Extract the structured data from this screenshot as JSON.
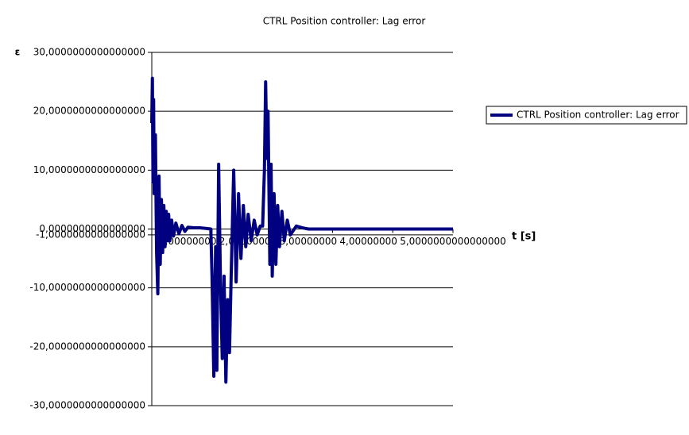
{
  "chart_data": {
    "type": "line",
    "title": "CTRL Position controller: Lag error",
    "y_label": "ε",
    "x_label": "t [s]",
    "xlim": [
      0,
      5
    ],
    "xticks": [
      {
        "value": 1,
        "label": "1,0000000000000000"
      },
      {
        "value": 2,
        "label": "2,0000000000000000"
      },
      {
        "value": 3,
        "label": "3,0000000000000000"
      },
      {
        "value": 4,
        "label": "4,0000000000000000"
      },
      {
        "value": 5,
        "label": "5,0000000000000000"
      }
    ],
    "ylim": [
      -30,
      30
    ],
    "yticks": [
      {
        "value": -30,
        "label": "-30,0000000000000000"
      },
      {
        "value": -20,
        "label": "-20,0000000000000000"
      },
      {
        "value": -10,
        "label": "-10,0000000000000000"
      },
      {
        "value": -1,
        "label": "-1,0000000000000000"
      },
      {
        "value": 0,
        "label": "0,0000000000000000"
      },
      {
        "value": 10,
        "label": "10,0000000000000000"
      },
      {
        "value": 20,
        "label": "20,0000000000000000"
      },
      {
        "value": 30,
        "label": "30,0000000000000000"
      }
    ],
    "grid": true,
    "legend": "right",
    "x": [
      0,
      0.01,
      0.02,
      0.03,
      0.04,
      0.06,
      0.08,
      0.1,
      0.12,
      0.14,
      0.16,
      0.18,
      0.2,
      0.22,
      0.24,
      0.26,
      0.28,
      0.3,
      0.33,
      0.36,
      0.4,
      0.45,
      0.5,
      0.55,
      0.6,
      0.7,
      0.8,
      0.9,
      0.98,
      1.0,
      1.03,
      1.06,
      1.08,
      1.11,
      1.14,
      1.17,
      1.2,
      1.23,
      1.26,
      1.29,
      1.32,
      1.36,
      1.4,
      1.44,
      1.48,
      1.52,
      1.56,
      1.6,
      1.65,
      1.7,
      1.75,
      1.8,
      1.84,
      1.87,
      1.89,
      1.91,
      1.93,
      1.96,
      1.98,
      2.0,
      2.03,
      2.06,
      2.09,
      2.12,
      2.16,
      2.2,
      2.25,
      2.3,
      2.4,
      2.5,
      2.6,
      3,
      4,
      5
    ],
    "series": [
      {
        "name": "CTRL Position controller: Lag error",
        "color": "#000080",
        "values": [
          18,
          25.6,
          8,
          22,
          6,
          16,
          -4,
          -11,
          9,
          -6,
          5,
          -4,
          4,
          -3,
          3,
          -2,
          2.5,
          -2,
          1.5,
          -1.2,
          1,
          -0.8,
          0.6,
          -0.4,
          0.3,
          0.2,
          0.2,
          0.1,
          0,
          -8,
          -25,
          -3,
          -24,
          11,
          -9,
          -22,
          -8,
          -26,
          -12,
          -21,
          -7,
          10,
          -9,
          6,
          -5,
          4,
          -3,
          2.5,
          -2,
          1.5,
          -1,
          0.5,
          0.5,
          10,
          25,
          12,
          20,
          -6,
          11,
          -8,
          6,
          -6,
          4,
          -3,
          3,
          -2,
          1.5,
          -1,
          0.5,
          0.2,
          0,
          0,
          0,
          0
        ]
      }
    ]
  }
}
